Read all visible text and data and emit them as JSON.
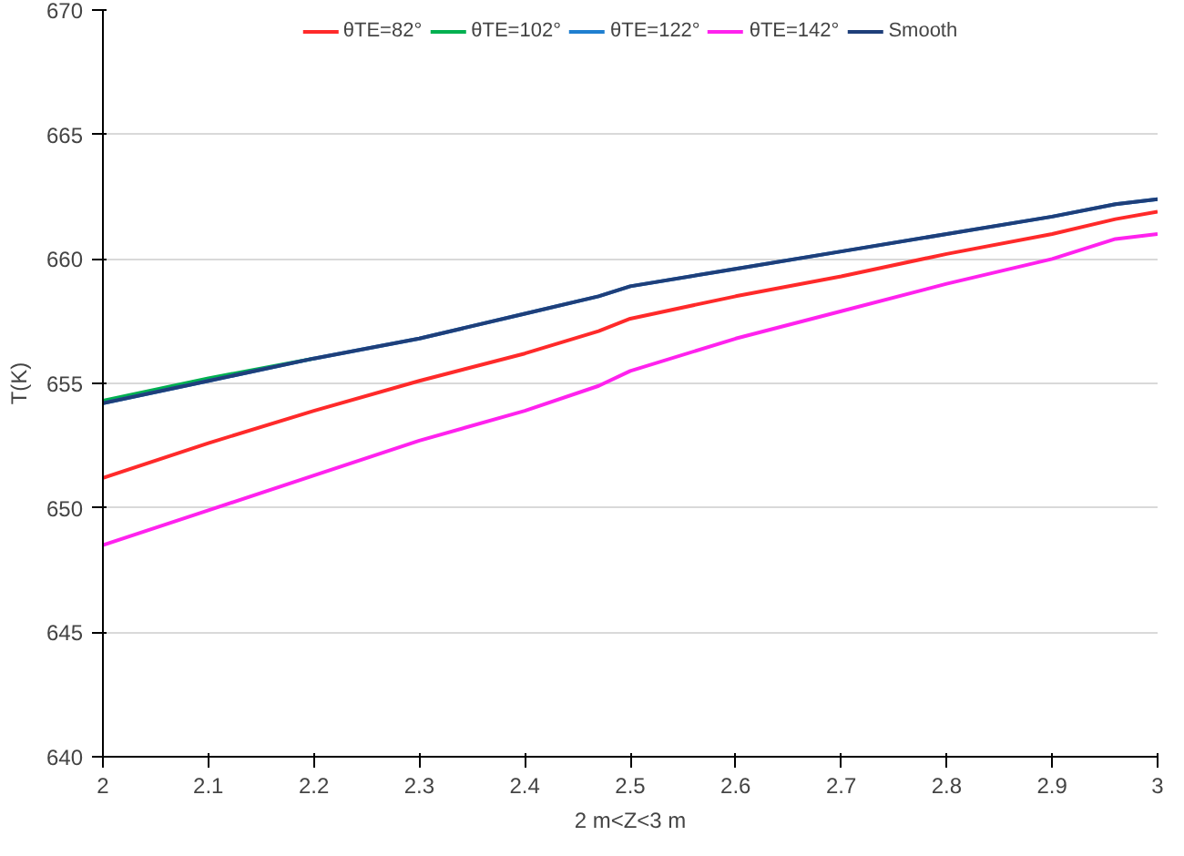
{
  "chart_data": {
    "type": "line",
    "xlabel": "2 m<Z<3 m",
    "ylabel": "T(K)",
    "x": [
      2,
      2.1,
      2.2,
      2.3,
      2.4,
      2.47,
      2.5,
      2.6,
      2.7,
      2.8,
      2.9,
      2.96,
      3
    ],
    "xlim": [
      2,
      3
    ],
    "xticks": [
      2,
      2.1,
      2.2,
      2.3,
      2.4,
      2.5,
      2.6,
      2.7,
      2.8,
      2.9,
      3
    ],
    "ylim": [
      640,
      670
    ],
    "yticks": [
      640,
      645,
      650,
      655,
      660,
      665,
      670
    ],
    "grid": "y",
    "legend": "top",
    "marker": "none",
    "line_style": "solid",
    "series": [
      {
        "name": "θTE=82°",
        "color": "#ff2a2a",
        "values": [
          651.2,
          652.6,
          653.9,
          655.1,
          656.2,
          657.1,
          657.6,
          658.5,
          659.3,
          660.2,
          661.0,
          661.6,
          661.9
        ]
      },
      {
        "name": "θTE=102°",
        "color": "#00b050",
        "values": [
          654.3,
          655.2,
          656.0,
          null,
          null,
          null,
          null,
          null,
          null,
          null,
          null,
          null,
          null
        ]
      },
      {
        "name": "θTE=122°",
        "color": "#1f7fd0",
        "values": [
          654.2,
          655.1,
          656.0,
          656.8,
          657.8,
          658.5,
          658.9,
          659.6,
          660.3,
          661.0,
          661.7,
          662.2,
          662.4
        ]
      },
      {
        "name": "θTE=142°",
        "color": "#ff22ee",
        "values": [
          648.5,
          649.9,
          651.3,
          652.7,
          653.9,
          654.9,
          655.5,
          656.8,
          657.9,
          659.0,
          660.0,
          660.8,
          661.0
        ]
      },
      {
        "name": "Smooth",
        "color": "#1f3f7a",
        "values": [
          654.2,
          655.1,
          656.0,
          656.8,
          657.8,
          658.5,
          658.9,
          659.6,
          660.3,
          661.0,
          661.7,
          662.2,
          662.4
        ]
      }
    ]
  }
}
